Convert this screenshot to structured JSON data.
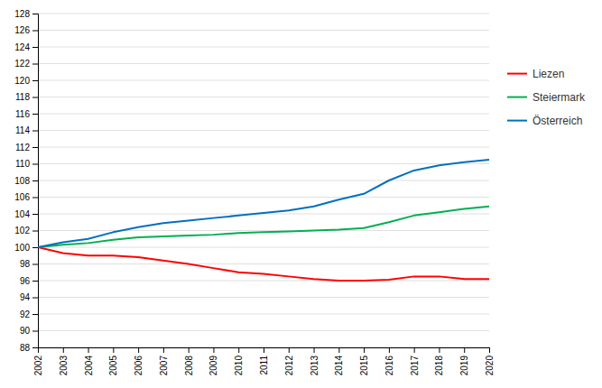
{
  "chart_data": {
    "type": "line",
    "x": [
      2002,
      2003,
      2004,
      2005,
      2006,
      2007,
      2008,
      2009,
      2010,
      2011,
      2012,
      2013,
      2014,
      2015,
      2016,
      2017,
      2018,
      2019,
      2020
    ],
    "series": [
      {
        "name": "Liezen",
        "color": "#ff0000",
        "values": [
          100.0,
          99.3,
          99.0,
          99.0,
          98.8,
          98.4,
          98.0,
          97.5,
          97.0,
          96.8,
          96.5,
          96.2,
          96.0,
          96.0,
          96.1,
          96.5,
          96.5,
          96.2,
          96.2
        ]
      },
      {
        "name": "Steiermark",
        "color": "#00b050",
        "values": [
          100.0,
          100.3,
          100.5,
          100.9,
          101.2,
          101.3,
          101.4,
          101.5,
          101.7,
          101.8,
          101.9,
          102.0,
          102.1,
          102.3,
          103.0,
          103.8,
          104.2,
          104.6,
          104.9
        ]
      },
      {
        "name": "Österreich",
        "color": "#0070c0",
        "values": [
          100.0,
          100.6,
          101.0,
          101.8,
          102.4,
          102.9,
          103.2,
          103.5,
          103.8,
          104.1,
          104.4,
          104.9,
          105.7,
          106.4,
          108.0,
          109.2,
          109.8,
          110.2,
          110.5
        ]
      }
    ],
    "xlim": [
      2002,
      2020
    ],
    "xticks": [
      2002,
      2003,
      2004,
      2005,
      2006,
      2007,
      2008,
      2009,
      2010,
      2011,
      2012,
      2013,
      2014,
      2015,
      2016,
      2017,
      2018,
      2019,
      2020
    ],
    "ylim": [
      88,
      128
    ],
    "yticks": [
      88,
      90,
      92,
      94,
      96,
      98,
      100,
      102,
      104,
      106,
      108,
      110,
      112,
      114,
      116,
      118,
      120,
      122,
      124,
      126,
      128
    ],
    "grid": true,
    "legend": "right"
  }
}
